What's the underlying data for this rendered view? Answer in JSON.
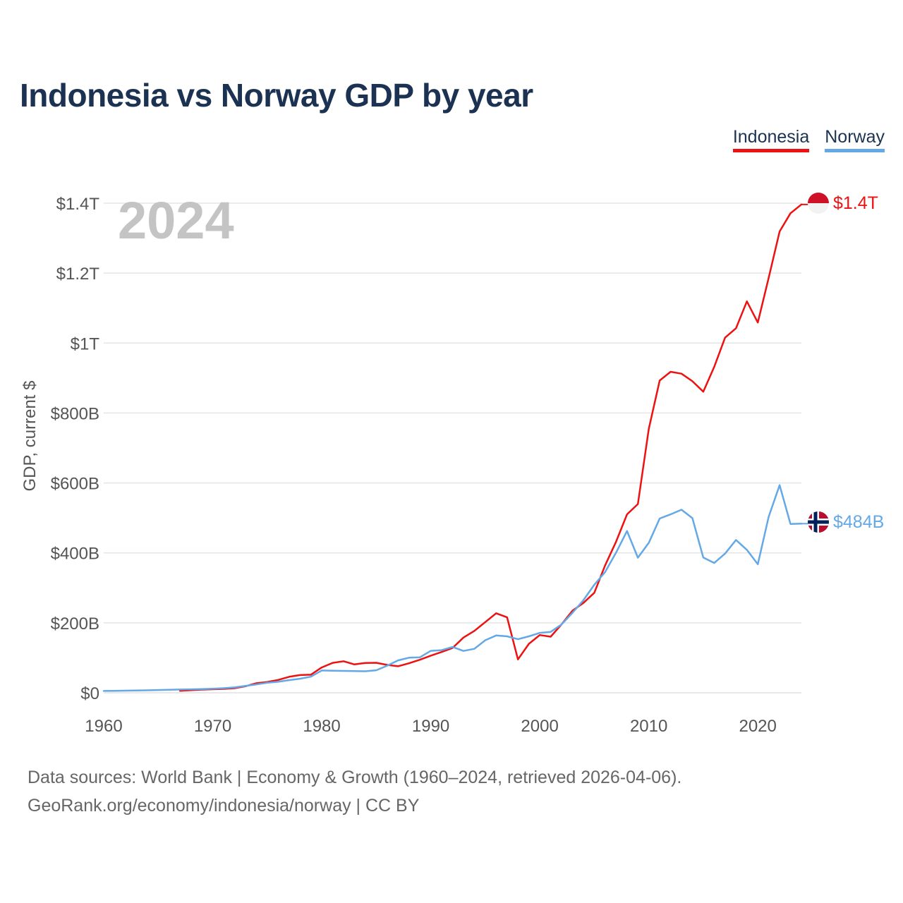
{
  "title": "Indonesia vs Norway GDP by year",
  "legend": {
    "indonesia": "Indonesia",
    "norway": "Norway"
  },
  "footer": {
    "line1": "Data sources: World Bank | Economy & Growth (1960–2024, retrieved 2026-04-06).",
    "line2": "GeoRank.org/economy/indonesia/norway | CC BY"
  },
  "colors": {
    "indonesia": "#ee1111",
    "norway": "#64a8e6",
    "title": "#1b3252",
    "grid": "#e5e5e5",
    "year_watermark": "#c4c4c4"
  },
  "chart_data": {
    "type": "line",
    "title": "Indonesia vs Norway GDP by year",
    "ylabel": "GDP, current $",
    "xlabel": "",
    "year_label": "2024",
    "xlim": [
      1960,
      2024
    ],
    "ylim": [
      0,
      1400
    ],
    "unit": "billions of current US$",
    "y_ticks": [
      {
        "value": 0,
        "label": "$0"
      },
      {
        "value": 200,
        "label": "$200B"
      },
      {
        "value": 400,
        "label": "$400B"
      },
      {
        "value": 600,
        "label": "$600B"
      },
      {
        "value": 800,
        "label": "$800B"
      },
      {
        "value": 1000,
        "label": "$1T"
      },
      {
        "value": 1200,
        "label": "$1.2T"
      },
      {
        "value": 1400,
        "label": "$1.4T"
      }
    ],
    "x_ticks": [
      {
        "value": 1960,
        "label": "1960"
      },
      {
        "value": 1970,
        "label": "1970"
      },
      {
        "value": 1980,
        "label": "1980"
      },
      {
        "value": 1990,
        "label": "1990"
      },
      {
        "value": 2000,
        "label": "2000"
      },
      {
        "value": 2010,
        "label": "2010"
      },
      {
        "value": 2020,
        "label": "2020"
      }
    ],
    "series": [
      {
        "name": "Indonesia",
        "key": "indonesia",
        "end_label": "$1.4T",
        "start_year": 1967,
        "values": [
          5.7,
          7.3,
          9.1,
          10.1,
          11.0,
          13.1,
          18.5,
          27.2,
          30.9,
          36.8,
          45.6,
          50.7,
          51.6,
          72.5,
          85.5,
          90.2,
          81.1,
          85.4,
          85.7,
          79.6,
          75.9,
          84.3,
          94.5,
          106.1,
          116.6,
          128.0,
          158.0,
          176.9,
          202.1,
          227.4,
          215.7,
          95.4,
          140.0,
          165.0,
          160.4,
          195.7,
          234.8,
          256.8,
          285.9,
          364.6,
          432.2,
          510.2,
          539.6,
          755.1,
          892.9,
          917.9,
          912.5,
          890.8,
          860.9,
          931.9,
          1015.6,
          1042.3,
          1119.1,
          1058.7,
          1186.5,
          1319.1,
          1371.2,
          1396.3
        ]
      },
      {
        "name": "Norway",
        "key": "norway",
        "end_label": "$484B",
        "start_year": 1960,
        "values": [
          5.2,
          5.7,
          6.1,
          6.6,
          7.1,
          7.9,
          8.5,
          9.2,
          9.8,
          10.6,
          11.8,
          13.2,
          15.4,
          19.8,
          23.8,
          28.7,
          31.5,
          36.1,
          40.2,
          45.9,
          63.7,
          63.1,
          62.5,
          61.9,
          61.5,
          64.4,
          77.4,
          92.6,
          100.2,
          101.3,
          119.8,
          121.9,
          130.9,
          119.6,
          125.6,
          150.2,
          163.9,
          161.4,
          153.2,
          161.3,
          171.3,
          174.0,
          195.4,
          228.8,
          264.4,
          308.9,
          345.4,
          400.9,
          462.6,
          386.4,
          428.8,
          498.3,
          510.2,
          523.5,
          499.3,
          386.7,
          371.1,
          398.1,
          437.0,
          408.7,
          367.6,
          503.4,
          593.7,
          482.8,
          483.6
        ]
      }
    ]
  }
}
